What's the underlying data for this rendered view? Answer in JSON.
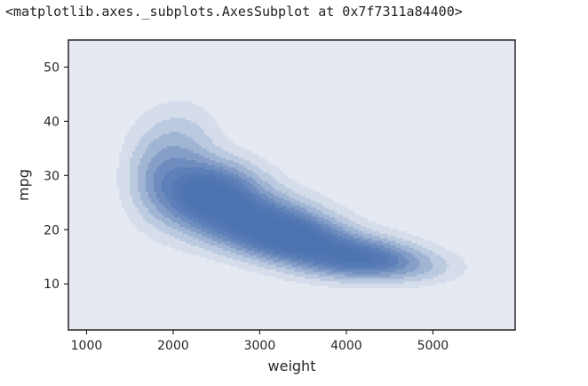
{
  "output": {
    "repr_text": "<matplotlib.axes._subplots.AxesSubplot at 0x7f7311a84400>"
  },
  "colors": {
    "axes_bg": "#e5e9f2",
    "kde_base": "#4c72b0",
    "spine": "#262626",
    "tick_text": "#262626"
  },
  "chart_data": {
    "type": "kde",
    "xlabel": "weight",
    "ylabel": "mpg",
    "xlim": [
      790,
      5950
    ],
    "ylim": [
      1.5,
      55
    ],
    "xticks": [
      1000,
      2000,
      3000,
      4000,
      5000
    ],
    "yticks": [
      10,
      20,
      30,
      40,
      50
    ],
    "grid": false,
    "legend": "none",
    "fill": true,
    "levels": 10,
    "density_peaks": [
      {
        "weight": 2450,
        "mpg": 26.5
      },
      {
        "weight": 3350,
        "mpg": 18.5
      },
      {
        "weight": 4150,
        "mpg": 14.5
      }
    ]
  }
}
